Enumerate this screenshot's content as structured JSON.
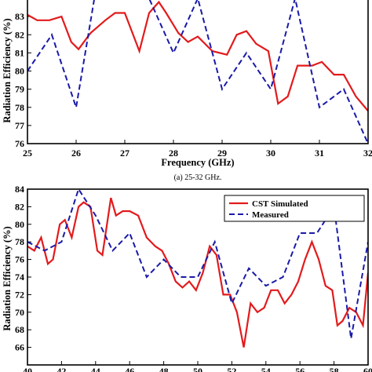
{
  "caption_top": "(a) 25-32 GHz.",
  "legend": {
    "simulated": "CST Simulated",
    "measured": "Measured"
  },
  "colors": {
    "simulated": "#e31a1c",
    "measured": "#1a1aa8"
  },
  "chart_data": [
    {
      "type": "line",
      "title": "",
      "xlabel": "Frequency (GHz)",
      "ylabel": "Radiation Efficiency (%)",
      "xlim": [
        25,
        32
      ],
      "ylim": [
        76,
        84
      ],
      "xticks": [
        "25",
        "26",
        "27",
        "28",
        "29",
        "30",
        "31",
        "32"
      ],
      "yticks": [
        "76",
        "77",
        "78",
        "79",
        "80",
        "81",
        "82",
        "83"
      ],
      "grid": false,
      "series": [
        {
          "name": "CST Simulated",
          "x": [
            25,
            25.2,
            25.45,
            25.7,
            25.9,
            26.05,
            26.3,
            26.6,
            26.8,
            27,
            27.3,
            27.5,
            27.7,
            27.85,
            28.1,
            28.3,
            28.5,
            28.8,
            29.1,
            29.3,
            29.5,
            29.7,
            29.95,
            30.15,
            30.35,
            30.55,
            30.85,
            31.05,
            31.3,
            31.5,
            31.75,
            32
          ],
          "values": [
            83.1,
            82.8,
            82.8,
            83,
            81.6,
            81.2,
            82.1,
            82.8,
            83.2,
            83.2,
            81.1,
            83.2,
            83.8,
            83.2,
            82.1,
            81.6,
            81.9,
            81.1,
            80.9,
            82,
            82.2,
            81.5,
            81.1,
            78.2,
            78.6,
            80.3,
            80.3,
            80.5,
            79.8,
            79.8,
            78.6,
            77.8
          ]
        },
        {
          "name": "Measured",
          "x": [
            25,
            25.5,
            26,
            26.5,
            27,
            27.5,
            28,
            28.5,
            29,
            29.5,
            30,
            30.5,
            31,
            31.5,
            32
          ],
          "values": [
            80,
            82,
            78,
            86,
            86,
            84,
            81,
            84,
            79,
            81,
            79,
            84,
            78,
            79,
            76
          ]
        }
      ]
    },
    {
      "type": "line",
      "title": "",
      "xlabel": "",
      "ylabel": "Radiation Efficiency (%)",
      "xlim": [
        40,
        60
      ],
      "ylim": [
        64,
        84
      ],
      "xticks": [
        "40",
        "42",
        "44",
        "46",
        "48",
        "50",
        "52",
        "54",
        "56",
        "58",
        "60"
      ],
      "yticks": [
        "66",
        "68",
        "70",
        "72",
        "74",
        "76",
        "78",
        "80",
        "82",
        "84"
      ],
      "legend_position": "top-right",
      "grid": false,
      "series": [
        {
          "name": "CST Simulated",
          "x": [
            40,
            40.4,
            40.8,
            41.2,
            41.5,
            41.9,
            42.2,
            42.6,
            43,
            43.3,
            43.7,
            44.1,
            44.4,
            44.9,
            45.2,
            45.6,
            46,
            46.5,
            47,
            47.5,
            47.9,
            48.3,
            48.7,
            49.1,
            49.5,
            49.9,
            50.3,
            50.7,
            51.1,
            51.5,
            51.9,
            52.3,
            52.7,
            53.1,
            53.5,
            53.9,
            54.3,
            54.7,
            55.1,
            55.5,
            55.9,
            56.3,
            56.7,
            57.1,
            57.5,
            57.9,
            58.2,
            58.5,
            58.9,
            59.3,
            59.7,
            60
          ],
          "values": [
            77.5,
            77,
            78.5,
            75.5,
            76,
            80,
            80.5,
            78.5,
            82,
            82.5,
            82,
            77,
            76.5,
            83,
            81,
            81.5,
            81.5,
            81,
            78.5,
            77.5,
            77,
            75.5,
            73.5,
            72.8,
            73.5,
            72.5,
            74.5,
            77.5,
            76.5,
            72,
            72,
            70,
            66,
            71,
            70,
            70.5,
            72.5,
            72.5,
            71,
            72,
            73.5,
            76,
            78,
            76,
            73,
            72.5,
            68.5,
            69,
            70.5,
            70,
            68.5,
            74.5
          ]
        },
        {
          "name": "Measured",
          "x": [
            40,
            41,
            42,
            43,
            44,
            45,
            46,
            47,
            48,
            49,
            50,
            51,
            52,
            53,
            54,
            55,
            56,
            57,
            58,
            59,
            60
          ],
          "values": [
            78,
            77,
            78,
            84,
            81,
            77,
            79,
            74,
            76,
            74,
            74,
            78,
            71,
            75,
            73,
            74,
            79,
            79,
            82,
            67,
            78
          ]
        }
      ]
    }
  ]
}
